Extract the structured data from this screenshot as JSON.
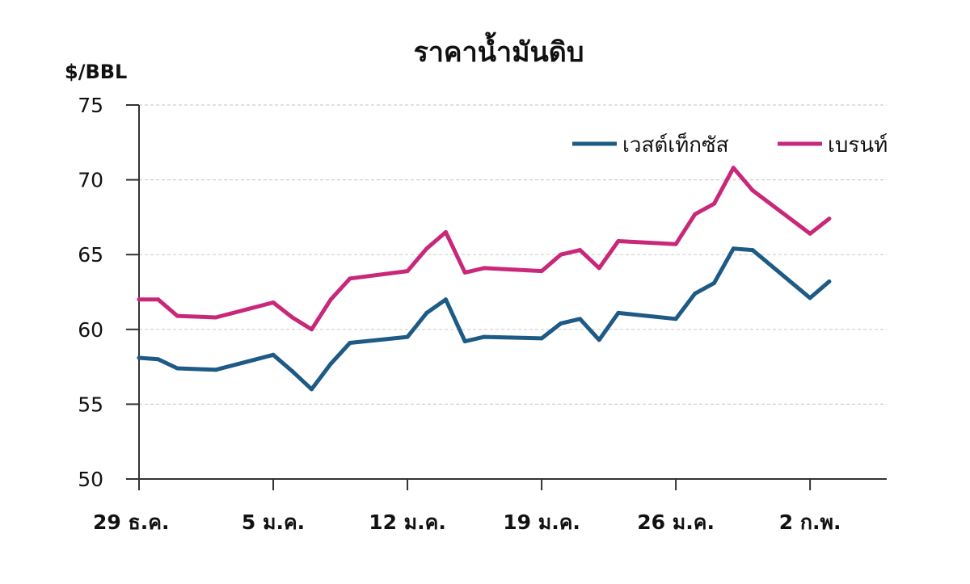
{
  "chart_data": {
    "type": "line",
    "title": "ราคาน้ำมันดิบ",
    "ylabel": "$/BBL",
    "xlabel": "",
    "ylim": [
      50,
      75
    ],
    "yticks": [
      50,
      55,
      60,
      65,
      70,
      75
    ],
    "xlim": [
      "2014-12-29",
      "2015-02-06"
    ],
    "xticks": [
      {
        "date": "2014-12-29",
        "label": "29 ธ.ค."
      },
      {
        "date": "2015-01-05",
        "label": "5 ม.ค."
      },
      {
        "date": "2015-01-12",
        "label": "12 ม.ค."
      },
      {
        "date": "2015-01-19",
        "label": "19 ม.ค."
      },
      {
        "date": "2015-01-26",
        "label": "26 ม.ค."
      },
      {
        "date": "2015-02-02",
        "label": "2 ก.พ."
      }
    ],
    "grid": "horizontal-dashed",
    "legend_position": "top-right",
    "x": [
      "2014-12-29",
      "2014-12-30",
      "2014-12-31",
      "2015-01-02",
      "2015-01-05",
      "2015-01-06",
      "2015-01-07",
      "2015-01-08",
      "2015-01-09",
      "2015-01-12",
      "2015-01-13",
      "2015-01-14",
      "2015-01-15",
      "2015-01-16",
      "2015-01-19",
      "2015-01-20",
      "2015-01-21",
      "2015-01-22",
      "2015-01-23",
      "2015-01-26",
      "2015-01-27",
      "2015-01-28",
      "2015-01-29",
      "2015-01-30",
      "2015-02-02",
      "2015-02-03"
    ],
    "series": [
      {
        "name": "เวสต์เท็กซัส",
        "color": "#1d5a85",
        "values": [
          58.1,
          58.0,
          57.4,
          57.3,
          58.3,
          57.2,
          56.0,
          57.7,
          59.1,
          59.5,
          61.1,
          62.0,
          59.2,
          59.5,
          59.4,
          60.4,
          60.7,
          59.3,
          61.1,
          60.7,
          62.4,
          63.1,
          65.4,
          65.3,
          62.1,
          63.2
        ]
      },
      {
        "name": "เบรนท์",
        "color": "#c8287a",
        "values": [
          62.0,
          62.0,
          60.9,
          60.8,
          61.8,
          60.8,
          60.0,
          62.0,
          63.4,
          63.9,
          65.4,
          66.5,
          63.8,
          64.1,
          63.9,
          65.0,
          65.3,
          64.1,
          65.9,
          65.7,
          67.7,
          68.4,
          70.8,
          69.3,
          66.4,
          67.4
        ]
      }
    ]
  }
}
